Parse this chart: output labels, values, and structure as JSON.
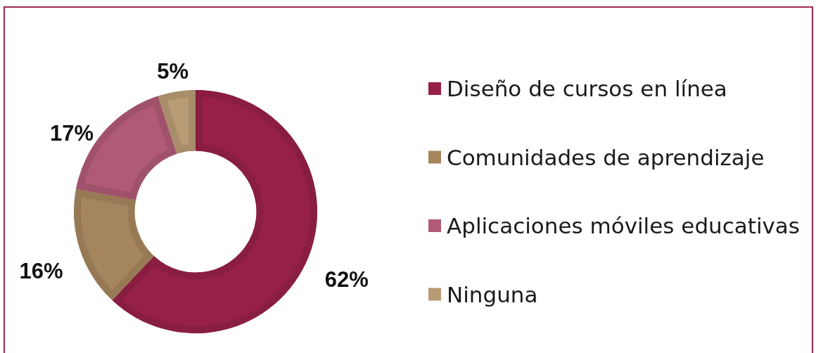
{
  "chart_data": {
    "type": "donut",
    "categories": [
      "Diseño de cursos en línea",
      "Comunidades de aprendizaje",
      "Aplicaciones móviles educativas",
      "Ninguna"
    ],
    "values": [
      62,
      16,
      17,
      5
    ],
    "colors": [
      "#962048",
      "#a5855d",
      "#b05a75",
      "#b89a74"
    ],
    "value_labels": [
      "62%",
      "16%",
      "17%",
      "5%"
    ],
    "legend": "right"
  }
}
